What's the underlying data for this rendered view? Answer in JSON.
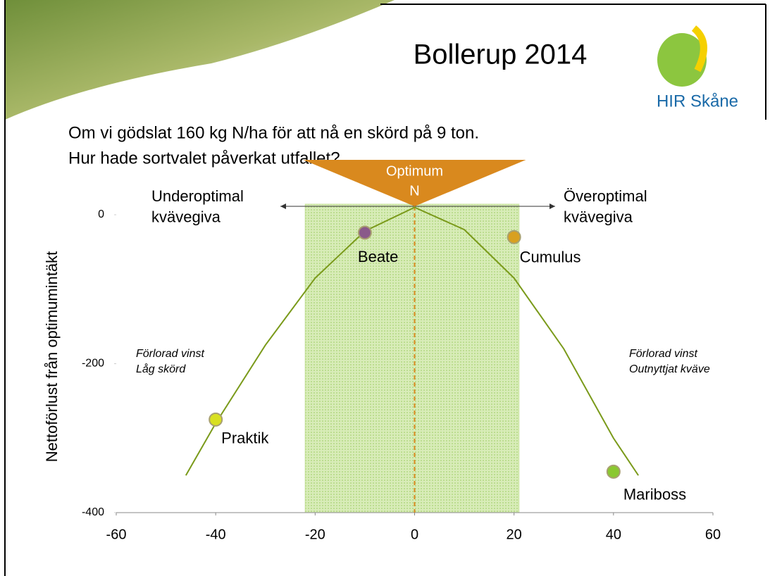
{
  "header": {
    "title": "Bollerup 2014",
    "logo": "HIR Skåne",
    "subtitle": [
      "Om vi gödslat 160 kg N/ha för att nå en skörd på 9 ton.",
      "Hur hade sortvalet påverkat utfallet?"
    ]
  },
  "chart_data": {
    "type": "scatter",
    "y_label": "Nettoförlust från optimumintäkt",
    "xlim": [
      -60,
      60
    ],
    "xticks": [
      -60,
      -40,
      -20,
      0,
      20,
      40,
      60
    ],
    "ylim": [
      -400,
      0
    ],
    "yticks": [
      -400,
      -200,
      0
    ],
    "optimal_range": [
      -22,
      21
    ],
    "optimal_range_color": "#c6e29a",
    "optimum_x": 0,
    "optimum_color": "#d9891e",
    "curve": {
      "color": "#7a9a1a",
      "x": [
        -46,
        -40,
        -30,
        -20,
        -10,
        0,
        10,
        20,
        30,
        40,
        45
      ],
      "values": [
        -350,
        -280,
        -175,
        -85,
        -22,
        10,
        -20,
        -85,
        -180,
        -300,
        -350
      ]
    },
    "series": [
      {
        "name": "Praktik",
        "color": "#d8e020",
        "x": [
          -40
        ],
        "values": [
          -275
        ]
      },
      {
        "name": "Beate",
        "color": "#8a5a8a",
        "x": [
          -10
        ],
        "values": [
          -24
        ]
      },
      {
        "name": "Cumulus",
        "color": "#d8a020",
        "x": [
          20
        ],
        "values": [
          -30
        ]
      },
      {
        "name": "Mariboss",
        "color": "#8ac830",
        "x": [
          40
        ],
        "values": [
          -345
        ]
      }
    ],
    "optimum_label": [
      "Optimum",
      "N"
    ],
    "annotations": [
      {
        "lines": [
          "Underoptimal",
          "kvävegiva"
        ]
      },
      {
        "lines": [
          "Överoptimal",
          "kvävegiva"
        ]
      },
      {
        "lines": [
          "Förlorad vinst",
          "Låg skörd"
        ]
      },
      {
        "lines": [
          "Förlorad vinst",
          "Outnyttjat kväve"
        ]
      }
    ]
  }
}
